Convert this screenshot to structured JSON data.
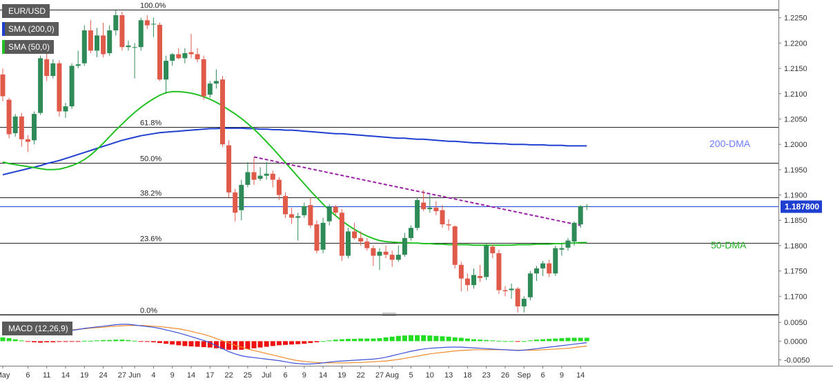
{
  "symbol": "EUR/USD",
  "colors": {
    "up": "#2e8b57",
    "down": "#e05a4a",
    "sma200": "#1f3fd1",
    "sma50": "#22c022",
    "trendline": "#9a1fa6",
    "price_line": "#1f3fd1",
    "macd_line": "#3a4fd8",
    "signal_line": "#f08a2a",
    "hist_pos": "#22dd22",
    "hist_neg": "#ee1111"
  },
  "legend": [
    {
      "label": "EUR/USD",
      "color": "#5a5a5a"
    },
    {
      "label": "SMA (200,0)",
      "color": "#1f3fd1"
    },
    {
      "label": "SMA (50,0)",
      "color": "#22c022"
    },
    {
      "label": "MACD (12,26,9)",
      "color": "#5a5a5a"
    }
  ],
  "annotations": {
    "dma200": "200-DMA",
    "dma50": "50-DMA"
  },
  "chart_data": {
    "type": "candlestick",
    "price_axis": {
      "ylim": [
        1.1665,
        1.2285
      ],
      "ticks": [
        "1.2250",
        "1.2200",
        "1.2150",
        "1.2100",
        "1.2050",
        "1.2000",
        "1.1950",
        "1.1900",
        "1.1850",
        "1.1800",
        "1.1750",
        "1.1700"
      ],
      "tick_values": [
        1.225,
        1.22,
        1.215,
        1.21,
        1.205,
        1.2,
        1.195,
        1.19,
        1.185,
        1.18,
        1.175,
        1.17
      ]
    },
    "current_price": {
      "value": 1.1878,
      "label": "1.187800"
    },
    "fibonacci": [
      {
        "label": "100.0%",
        "value": 1.2266
      },
      {
        "label": "61.8%",
        "value": 1.2034
      },
      {
        "label": "50.0%",
        "value": 1.1964
      },
      {
        "label": "38.2%",
        "value": 1.1895
      },
      {
        "label": "23.6%",
        "value": 1.1806
      },
      {
        "label": "0.0%",
        "value": 1.1664
      }
    ],
    "x_axis": {
      "labels": [
        "May",
        "6",
        "11",
        "14",
        "19",
        "24",
        "27",
        "Jun",
        "4",
        "9",
        "14",
        "17",
        "22",
        "25",
        "Jul",
        "6",
        "9",
        "14",
        "19",
        "22",
        "27",
        "Aug",
        "5",
        "10",
        "13",
        "18",
        "23",
        "26",
        "Sep",
        "6",
        "9",
        "14"
      ],
      "label_index": [
        0,
        4,
        7,
        10,
        13,
        16,
        19,
        21,
        24,
        27,
        30,
        33,
        36,
        39,
        42,
        45,
        48,
        51,
        54,
        57,
        60,
        62,
        65,
        68,
        71,
        74,
        77,
        80,
        83,
        86,
        89,
        92
      ],
      "total_slots": 95
    },
    "candles": [
      {
        "o": 1.2138,
        "h": 1.215,
        "l": 1.2085,
        "c": 1.2095
      },
      {
        "o": 1.2088,
        "h": 1.2092,
        "l": 1.2012,
        "c": 1.202
      },
      {
        "o": 1.2022,
        "h": 1.206,
        "l": 1.2015,
        "c": 1.2055
      },
      {
        "o": 1.2055,
        "h": 1.2062,
        "l": 1.1995,
        "c": 1.201
      },
      {
        "o": 1.201,
        "h": 1.2018,
        "l": 1.1985,
        "c": 1.2005
      },
      {
        "o": 1.2008,
        "h": 1.2065,
        "l": 1.2,
        "c": 1.206
      },
      {
        "o": 1.2062,
        "h": 1.2175,
        "l": 1.2058,
        "c": 1.217
      },
      {
        "o": 1.2168,
        "h": 1.218,
        "l": 1.2125,
        "c": 1.2135
      },
      {
        "o": 1.2135,
        "h": 1.2168,
        "l": 1.213,
        "c": 1.216
      },
      {
        "o": 1.216,
        "h": 1.2166,
        "l": 1.2055,
        "c": 1.2065
      },
      {
        "o": 1.2065,
        "h": 1.2082,
        "l": 1.2052,
        "c": 1.2075
      },
      {
        "o": 1.2075,
        "h": 1.216,
        "l": 1.207,
        "c": 1.2155
      },
      {
        "o": 1.2155,
        "h": 1.2185,
        "l": 1.215,
        "c": 1.2158
      },
      {
        "o": 1.216,
        "h": 1.2235,
        "l": 1.2155,
        "c": 1.2225
      },
      {
        "o": 1.2225,
        "h": 1.2245,
        "l": 1.218,
        "c": 1.2185
      },
      {
        "o": 1.2185,
        "h": 1.223,
        "l": 1.2172,
        "c": 1.2215
      },
      {
        "o": 1.2215,
        "h": 1.224,
        "l": 1.2172,
        "c": 1.2178
      },
      {
        "o": 1.218,
        "h": 1.2235,
        "l": 1.2175,
        "c": 1.2225
      },
      {
        "o": 1.2225,
        "h": 1.2265,
        "l": 1.2215,
        "c": 1.2255
      },
      {
        "o": 1.2255,
        "h": 1.2262,
        "l": 1.2185,
        "c": 1.2192
      },
      {
        "o": 1.2192,
        "h": 1.2205,
        "l": 1.2185,
        "c": 1.2195
      },
      {
        "o": 1.2192,
        "h": 1.22,
        "l": 1.213,
        "c": 1.2192
      },
      {
        "o": 1.2192,
        "h": 1.225,
        "l": 1.2185,
        "c": 1.2245
      },
      {
        "o": 1.2245,
        "h": 1.2255,
        "l": 1.2228,
        "c": 1.2235
      },
      {
        "o": 1.2238,
        "h": 1.225,
        "l": 1.2212,
        "c": 1.2238
      },
      {
        "o": 1.2236,
        "h": 1.224,
        "l": 1.2125,
        "c": 1.2128
      },
      {
        "o": 1.2128,
        "h": 1.2175,
        "l": 1.21,
        "c": 1.2165
      },
      {
        "o": 1.2165,
        "h": 1.218,
        "l": 1.2155,
        "c": 1.2178
      },
      {
        "o": 1.2178,
        "h": 1.219,
        "l": 1.2168,
        "c": 1.217
      },
      {
        "o": 1.217,
        "h": 1.219,
        "l": 1.216,
        "c": 1.218
      },
      {
        "o": 1.2182,
        "h": 1.2218,
        "l": 1.217,
        "c": 1.2178
      },
      {
        "o": 1.2178,
        "h": 1.219,
        "l": 1.2162,
        "c": 1.2168
      },
      {
        "o": 1.2168,
        "h": 1.2175,
        "l": 1.2088,
        "c": 1.2095
      },
      {
        "o": 1.2098,
        "h": 1.2125,
        "l": 1.2092,
        "c": 1.212
      },
      {
        "o": 1.212,
        "h": 1.2148,
        "l": 1.211,
        "c": 1.2125
      },
      {
        "o": 1.2128,
        "h": 1.2135,
        "l": 1.1995,
        "c": 1.2
      },
      {
        "o": 1.1998,
        "h": 1.2008,
        "l": 1.1895,
        "c": 1.1905
      },
      {
        "o": 1.1905,
        "h": 1.1912,
        "l": 1.1848,
        "c": 1.1865
      },
      {
        "o": 1.187,
        "h": 1.193,
        "l": 1.185,
        "c": 1.192
      },
      {
        "o": 1.192,
        "h": 1.1965,
        "l": 1.1915,
        "c": 1.1945
      },
      {
        "o": 1.1945,
        "h": 1.1975,
        "l": 1.192,
        "c": 1.193
      },
      {
        "o": 1.1932,
        "h": 1.1955,
        "l": 1.1928,
        "c": 1.1938
      },
      {
        "o": 1.1938,
        "h": 1.1965,
        "l": 1.193,
        "c": 1.1942
      },
      {
        "o": 1.1942,
        "h": 1.1948,
        "l": 1.1915,
        "c": 1.193
      },
      {
        "o": 1.193,
        "h": 1.1935,
        "l": 1.189,
        "c": 1.19
      },
      {
        "o": 1.1898,
        "h": 1.1905,
        "l": 1.1855,
        "c": 1.1862
      },
      {
        "o": 1.1862,
        "h": 1.1875,
        "l": 1.1843,
        "c": 1.1855
      },
      {
        "o": 1.1855,
        "h": 1.1865,
        "l": 1.181,
        "c": 1.1858
      },
      {
        "o": 1.186,
        "h": 1.1885,
        "l": 1.1855,
        "c": 1.1878
      },
      {
        "o": 1.188,
        "h": 1.1895,
        "l": 1.1835,
        "c": 1.184
      },
      {
        "o": 1.1842,
        "h": 1.185,
        "l": 1.1785,
        "c": 1.179
      },
      {
        "o": 1.1792,
        "h": 1.1855,
        "l": 1.1785,
        "c": 1.1845
      },
      {
        "o": 1.1848,
        "h": 1.1882,
        "l": 1.184,
        "c": 1.1877
      },
      {
        "o": 1.1877,
        "h": 1.188,
        "l": 1.186,
        "c": 1.1865
      },
      {
        "o": 1.1865,
        "h": 1.1872,
        "l": 1.177,
        "c": 1.178
      },
      {
        "o": 1.178,
        "h": 1.1835,
        "l": 1.1775,
        "c": 1.1828
      },
      {
        "o": 1.1828,
        "h": 1.1845,
        "l": 1.1812,
        "c": 1.1815
      },
      {
        "o": 1.1815,
        "h": 1.1828,
        "l": 1.18,
        "c": 1.1808
      },
      {
        "o": 1.1808,
        "h": 1.1815,
        "l": 1.179,
        "c": 1.1795
      },
      {
        "o": 1.1795,
        "h": 1.18,
        "l": 1.176,
        "c": 1.178
      },
      {
        "o": 1.178,
        "h": 1.1795,
        "l": 1.1752,
        "c": 1.1788
      },
      {
        "o": 1.1788,
        "h": 1.18,
        "l": 1.1775,
        "c": 1.1782
      },
      {
        "o": 1.1782,
        "h": 1.179,
        "l": 1.1758,
        "c": 1.1772
      },
      {
        "o": 1.1772,
        "h": 1.18,
        "l": 1.1768,
        "c": 1.1782
      },
      {
        "o": 1.1782,
        "h": 1.1825,
        "l": 1.1778,
        "c": 1.1815
      },
      {
        "o": 1.1815,
        "h": 1.184,
        "l": 1.181,
        "c": 1.1835
      },
      {
        "o": 1.1835,
        "h": 1.1895,
        "l": 1.183,
        "c": 1.189
      },
      {
        "o": 1.1885,
        "h": 1.191,
        "l": 1.1868,
        "c": 1.1872
      },
      {
        "o": 1.1872,
        "h": 1.19,
        "l": 1.1865,
        "c": 1.1875
      },
      {
        "o": 1.1875,
        "h": 1.1888,
        "l": 1.186,
        "c": 1.1868
      },
      {
        "o": 1.187,
        "h": 1.188,
        "l": 1.1835,
        "c": 1.1842
      },
      {
        "o": 1.1842,
        "h": 1.1852,
        "l": 1.183,
        "c": 1.184
      },
      {
        "o": 1.1838,
        "h": 1.184,
        "l": 1.1755,
        "c": 1.1762
      },
      {
        "o": 1.1762,
        "h": 1.1768,
        "l": 1.171,
        "c": 1.1735
      },
      {
        "o": 1.1735,
        "h": 1.1745,
        "l": 1.171,
        "c": 1.1722
      },
      {
        "o": 1.1722,
        "h": 1.1755,
        "l": 1.1715,
        "c": 1.1742
      },
      {
        "o": 1.174,
        "h": 1.1762,
        "l": 1.1728,
        "c": 1.1736
      },
      {
        "o": 1.1738,
        "h": 1.1805,
        "l": 1.1732,
        "c": 1.18
      },
      {
        "o": 1.1798,
        "h": 1.1802,
        "l": 1.1775,
        "c": 1.1785
      },
      {
        "o": 1.1785,
        "h": 1.1792,
        "l": 1.1705,
        "c": 1.1712
      },
      {
        "o": 1.1712,
        "h": 1.172,
        "l": 1.17,
        "c": 1.171
      },
      {
        "o": 1.1712,
        "h": 1.1725,
        "l": 1.1695,
        "c": 1.1715
      },
      {
        "o": 1.1715,
        "h": 1.1718,
        "l": 1.1668,
        "c": 1.168
      },
      {
        "o": 1.168,
        "h": 1.17,
        "l": 1.1668,
        "c": 1.1695
      },
      {
        "o": 1.1698,
        "h": 1.175,
        "l": 1.1692,
        "c": 1.1745
      },
      {
        "o": 1.1745,
        "h": 1.176,
        "l": 1.173,
        "c": 1.1755
      },
      {
        "o": 1.1755,
        "h": 1.177,
        "l": 1.174,
        "c": 1.1765
      },
      {
        "o": 1.1765,
        "h": 1.1772,
        "l": 1.1738,
        "c": 1.1745
      },
      {
        "o": 1.1745,
        "h": 1.18,
        "l": 1.174,
        "c": 1.1795
      },
      {
        "o": 1.1792,
        "h": 1.1805,
        "l": 1.178,
        "c": 1.1795
      },
      {
        "o": 1.1796,
        "h": 1.1815,
        "l": 1.179,
        "c": 1.181
      },
      {
        "o": 1.1808,
        "h": 1.1848,
        "l": 1.18,
        "c": 1.1845
      },
      {
        "o": 1.1842,
        "h": 1.188,
        "l": 1.1835,
        "c": 1.1878
      },
      {
        "o": 1.1878,
        "h": 1.1882,
        "l": 1.187,
        "c": 1.1878
      }
    ],
    "sma200": [
      1.194,
      1.1943,
      1.1946,
      1.1949,
      1.1952,
      1.1955,
      1.1958,
      1.1962,
      1.1965,
      1.1968,
      1.1972,
      1.1976,
      1.198,
      1.1984,
      1.1988,
      1.1992,
      1.1996,
      1.2,
      1.2004,
      1.2008,
      1.2011,
      1.2014,
      1.2017,
      1.2019,
      1.2021,
      1.2023,
      1.2024,
      1.2025,
      1.2026,
      1.2027,
      1.2028,
      1.2029,
      1.203,
      1.2031,
      1.2031,
      1.2032,
      1.2032,
      1.2032,
      1.2032,
      1.2031,
      1.2031,
      1.203,
      1.203,
      1.2029,
      1.2029,
      1.2028,
      1.2028,
      1.2027,
      1.2026,
      1.2025,
      1.2024,
      1.2023,
      1.2022,
      1.2021,
      1.2021,
      1.202,
      1.2019,
      1.2018,
      1.2017,
      1.2016,
      1.2015,
      1.2014,
      1.2013,
      1.2012,
      1.2012,
      1.2011,
      1.201,
      1.201,
      1.2009,
      1.2008,
      1.2007,
      1.2006,
      1.2006,
      1.2005,
      1.2004,
      1.2003,
      1.2003,
      1.2002,
      1.2002,
      1.2001,
      1.2001,
      1.2,
      1.2,
      1.2,
      1.1999,
      1.1999,
      1.1999,
      1.1998,
      1.1998,
      1.1998,
      1.1997,
      1.1997,
      1.1997,
      1.1997
    ],
    "sma50": [
      1.1965,
      1.1962,
      1.196,
      1.1958,
      1.1956,
      1.1954,
      1.1952,
      1.195,
      1.195,
      1.1951,
      1.1954,
      1.1958,
      1.1963,
      1.197,
      1.1979,
      1.199,
      1.2002,
      1.2015,
      1.2028,
      1.204,
      1.2052,
      1.2063,
      1.2073,
      1.2082,
      1.209,
      1.2097,
      1.2102,
      1.2104,
      1.2104,
      1.2103,
      1.2101,
      1.2098,
      1.2094,
      1.2089,
      1.2083,
      1.2076,
      1.2068,
      1.206,
      1.2051,
      1.2041,
      1.203,
      1.2018,
      1.2005,
      1.1992,
      1.1978,
      1.1964,
      1.195,
      1.1936,
      1.1922,
      1.1908,
      1.1895,
      1.1882,
      1.187,
      1.1859,
      1.1849,
      1.184,
      1.1832,
      1.1825,
      1.1819,
      1.1814,
      1.181,
      1.1808,
      1.1807,
      1.1806,
      1.1806,
      1.1805,
      1.1805,
      1.1804,
      1.1804,
      1.1803,
      1.1803,
      1.1802,
      1.1802,
      1.1802,
      1.1802,
      1.1801,
      1.1801,
      1.1801,
      1.1801,
      1.1801,
      1.1801,
      1.1801,
      1.1802,
      1.1802,
      1.1802,
      1.1803,
      1.1803,
      1.1803,
      1.1804,
      1.1804,
      1.1805,
      1.1805,
      1.1806,
      1.1806
    ],
    "trendline": {
      "from": {
        "index": 40,
        "value": 1.1975
      },
      "to": {
        "index": 92,
        "value": 1.184
      }
    },
    "macd": {
      "label": "MACD (12,26,9)",
      "ylim": [
        -0.0062,
        0.0067
      ],
      "ticks": [
        "0.0050",
        "0.0000",
        "-0.0050"
      ],
      "tick_values": [
        0.005,
        0.0,
        -0.005
      ],
      "macd": [
        0.003,
        0.0028,
        0.0026,
        0.0024,
        0.0022,
        0.0021,
        0.0021,
        0.0023,
        0.0024,
        0.0026,
        0.0027,
        0.0029,
        0.0031,
        0.0034,
        0.0036,
        0.0038,
        0.004,
        0.0042,
        0.0044,
        0.0045,
        0.0045,
        0.0043,
        0.0041,
        0.0039,
        0.0037,
        0.0034,
        0.003,
        0.0026,
        0.0022,
        0.0017,
        0.0012,
        0.0007,
        0.0002,
        -0.0004,
        -0.0012,
        -0.002,
        -0.0028,
        -0.0034,
        -0.0039,
        -0.0042,
        -0.0044,
        -0.0046,
        -0.0048,
        -0.005,
        -0.0052,
        -0.0055,
        -0.0058,
        -0.006,
        -0.0061,
        -0.0061,
        -0.006,
        -0.0058,
        -0.0056,
        -0.0054,
        -0.0053,
        -0.0052,
        -0.0051,
        -0.005,
        -0.0049,
        -0.0048,
        -0.0046,
        -0.0043,
        -0.0039,
        -0.0035,
        -0.0031,
        -0.0027,
        -0.0024,
        -0.0021,
        -0.0019,
        -0.0018,
        -0.0017,
        -0.0016,
        -0.0016,
        -0.0016,
        -0.0017,
        -0.0018,
        -0.0019,
        -0.002,
        -0.0021,
        -0.0022,
        -0.0023,
        -0.0024,
        -0.0025,
        -0.0024,
        -0.0022,
        -0.002,
        -0.0018,
        -0.0016,
        -0.0014,
        -0.0012,
        -0.001,
        -0.0008,
        -0.0006,
        -0.0004
      ],
      "signal": [
        0.002,
        0.002,
        0.0021,
        0.0022,
        0.0023,
        0.0024,
        0.0025,
        0.0026,
        0.0027,
        0.0028,
        0.0029,
        0.003,
        0.0032,
        0.0033,
        0.0035,
        0.0036,
        0.0037,
        0.0039,
        0.004,
        0.0041,
        0.0042,
        0.0042,
        0.0042,
        0.0041,
        0.004,
        0.0039,
        0.0037,
        0.0035,
        0.0033,
        0.003,
        0.0026,
        0.0022,
        0.0018,
        0.0013,
        0.0007,
        0.0001,
        -0.0005,
        -0.0011,
        -0.0016,
        -0.0021,
        -0.0025,
        -0.0029,
        -0.0033,
        -0.0037,
        -0.0041,
        -0.0045,
        -0.0049,
        -0.0052,
        -0.0054,
        -0.0056,
        -0.0057,
        -0.0058,
        -0.0058,
        -0.0058,
        -0.0058,
        -0.0058,
        -0.0057,
        -0.0057,
        -0.0056,
        -0.0055,
        -0.0054,
        -0.0053,
        -0.0051,
        -0.0049,
        -0.0046,
        -0.0043,
        -0.004,
        -0.0037,
        -0.0034,
        -0.0032,
        -0.003,
        -0.0028,
        -0.0026,
        -0.0025,
        -0.0024,
        -0.0023,
        -0.0023,
        -0.0023,
        -0.0023,
        -0.0023,
        -0.0023,
        -0.0024,
        -0.0024,
        -0.0024,
        -0.0024,
        -0.0024,
        -0.0023,
        -0.0022,
        -0.0021,
        -0.002,
        -0.0019,
        -0.0017,
        -0.0015,
        -0.0013
      ]
    }
  }
}
